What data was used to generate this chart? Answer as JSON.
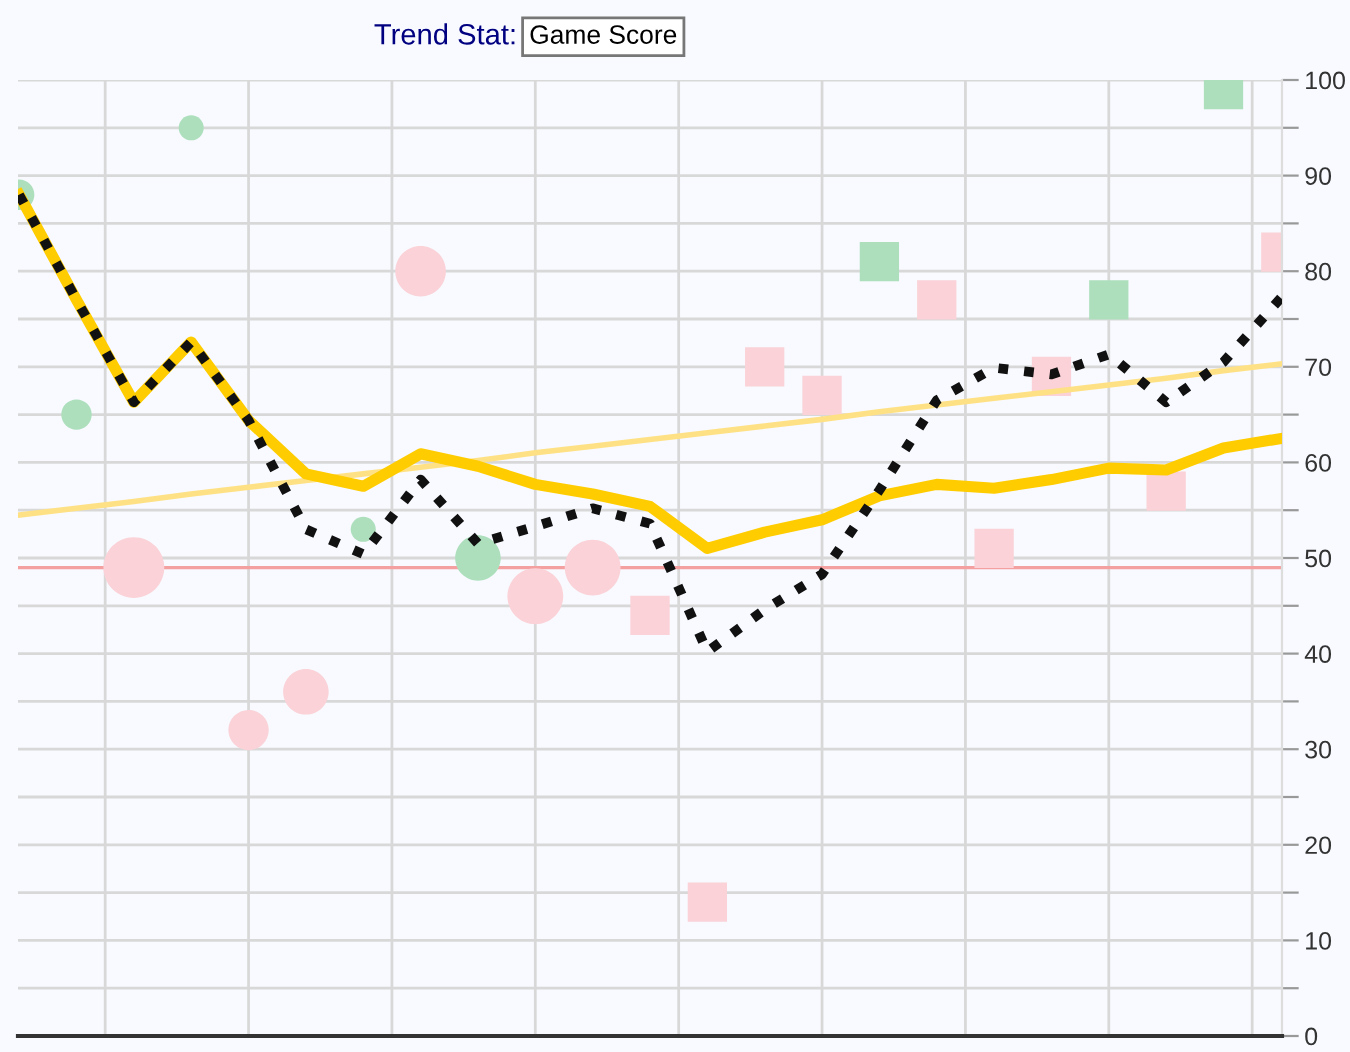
{
  "chart_data": {
    "type": "scatter",
    "title": "Trend Stat:",
    "subtitle": "Game Score",
    "categories": [
      null,
      null,
      null,
      null,
      null,
      null,
      null,
      null,
      null,
      null,
      null,
      null,
      null,
      null,
      null,
      null,
      null,
      null,
      null,
      null,
      null,
      null,
      null
    ],
    "series": [
      {
        "type": "bubble",
        "marker": "circle",
        "color": "#addfbd",
        "values": [
          88,
          65,
          null,
          95,
          null,
          null,
          53,
          null,
          50,
          null,
          null,
          null,
          null,
          null,
          null,
          null,
          null,
          null,
          null,
          null,
          null,
          null,
          null
        ],
        "sizes": [
          0.25,
          0.25,
          null,
          0.17,
          null,
          null,
          0.17,
          null,
          0.56,
          null,
          null,
          null,
          null,
          null,
          null,
          null,
          null,
          null,
          null,
          null,
          null,
          null,
          null
        ]
      },
      {
        "type": "bubble",
        "marker": "circle",
        "color": "#fad2d7",
        "values": [
          null,
          null,
          49,
          null,
          32,
          36,
          null,
          80,
          null,
          46,
          49,
          null,
          null,
          null,
          null,
          null,
          null,
          null,
          null,
          null,
          null,
          null,
          null
        ],
        "sizes": [
          null,
          null,
          1,
          null,
          0.44,
          0.56,
          null,
          0.69,
          null,
          0.84,
          0.84,
          null,
          null,
          null,
          null,
          null,
          null,
          null,
          null,
          null,
          null,
          null,
          null
        ]
      },
      {
        "marker": "square",
        "color": "#fad2d7",
        "values": [
          null,
          null,
          null,
          null,
          null,
          null,
          null,
          null,
          null,
          null,
          null,
          44,
          14,
          70,
          67,
          null,
          77,
          51,
          69,
          null,
          57,
          null,
          82
        ]
      },
      {
        "marker": "square",
        "color": "#addfbd",
        "values": [
          null,
          null,
          null,
          null,
          null,
          null,
          null,
          null,
          null,
          null,
          null,
          null,
          null,
          null,
          null,
          81,
          null,
          null,
          null,
          77,
          null,
          99,
          null
        ]
      },
      {
        "type": "line",
        "line_style": "solid",
        "color": "#ffe185",
        "values": [
          54.5,
          55.2,
          55.9,
          56.7,
          57.4,
          58.1,
          58.8,
          59.5,
          60.2,
          61.0,
          61.7,
          62.4,
          63.1,
          63.8,
          64.5,
          65.3,
          66.0,
          66.7,
          67.4,
          68.1,
          68.8,
          69.6,
          70.3
        ]
      },
      {
        "type": "line",
        "line_style": "solid",
        "color": "#ffcc00",
        "values": [
          88,
          77,
          66.3,
          72.6,
          64.4,
          58.8,
          57.5,
          60.9,
          59.6,
          57.7,
          56.7,
          55.4,
          51,
          52.7,
          54,
          56.5,
          57.7,
          57.3,
          58.2,
          59.4,
          59.2,
          61.5,
          62.5
        ]
      },
      {
        "type": "line",
        "line_style": "dotted",
        "color": "#111111",
        "values": [
          88,
          77,
          66.3,
          72.6,
          64.4,
          53,
          50.4,
          58.2,
          51.5,
          53.3,
          55.2,
          53.6,
          40.2,
          44.6,
          48.3,
          57.1,
          66.5,
          69.9,
          69.2,
          71.3,
          66.3,
          70.5,
          77.2
        ]
      }
    ],
    "ylim": [
      0,
      100
    ],
    "yticks": [
      0,
      {
        "value": 5,
        "label": null
      },
      10,
      {
        "value": 15,
        "label": null
      },
      20,
      {
        "value": 25,
        "label": null
      },
      30,
      {
        "value": 35,
        "label": null
      },
      40,
      {
        "value": 45,
        "label": null
      },
      50,
      {
        "value": 55,
        "label": null
      },
      60,
      {
        "value": 65,
        "label": null
      },
      70,
      {
        "value": 75,
        "label": null
      },
      80,
      {
        "value": 85,
        "label": null
      },
      90,
      {
        "value": 95,
        "label": null
      },
      100
    ],
    "ref_lines": [
      {
        "axis": "y",
        "value": 49,
        "color": "#f4a0a0"
      }
    ],
    "grid": true,
    "tick_labels": "y",
    "legend": false
  }
}
